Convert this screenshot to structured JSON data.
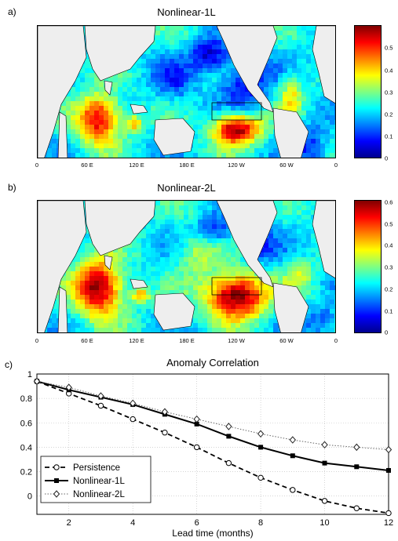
{
  "colors": {
    "land": "#eeeeee",
    "colormap": [
      "#00008f",
      "#0000ff",
      "#0080ff",
      "#00ffff",
      "#80ff80",
      "#ffff00",
      "#ff8000",
      "#ff0000",
      "#800000"
    ],
    "box_stroke": "#000000"
  },
  "panel_a": {
    "letter": "a)",
    "title": "Nonlinear-1L",
    "lon_ticks": [
      "0",
      "60 E",
      "120 E",
      "180 E",
      "120 W",
      "60 W",
      "0"
    ],
    "colorbar_ticks": [
      "0.5",
      "0.4",
      "0.3",
      "0.2",
      "0.1",
      "0"
    ]
  },
  "panel_b": {
    "letter": "b)",
    "title": "Nonlinear-2L",
    "lon_ticks": [
      "0",
      "60 E",
      "120 E",
      "180 E",
      "120 W",
      "60 W",
      "0"
    ],
    "colorbar_ticks": [
      "0.6",
      "0.5",
      "0.4",
      "0.3",
      "0.2",
      "0.1",
      "0"
    ]
  },
  "chart_data": {
    "type": "line",
    "letter": "c)",
    "title": "Anomaly Correlation",
    "xlabel": "Lead time (months)",
    "ylabel": "",
    "x": [
      1,
      2,
      3,
      4,
      5,
      6,
      7,
      8,
      9,
      10,
      11,
      12
    ],
    "xlim": [
      1,
      12
    ],
    "ylim": [
      -0.15,
      1
    ],
    "xticks": [
      2,
      4,
      6,
      8,
      10,
      12
    ],
    "yticks": [
      0,
      0.2,
      0.4,
      0.6,
      0.8,
      1
    ],
    "grid": true,
    "legend_position": "bottom-left",
    "series": [
      {
        "name": "Persistence",
        "style": "dashed",
        "marker": "circle",
        "values": [
          0.94,
          0.84,
          0.74,
          0.63,
          0.52,
          0.4,
          0.27,
          0.15,
          0.05,
          -0.04,
          -0.1,
          -0.14
        ]
      },
      {
        "name": "Nonlinear-1L",
        "style": "solid",
        "marker": "square",
        "values": [
          0.94,
          0.87,
          0.81,
          0.75,
          0.67,
          0.59,
          0.49,
          0.4,
          0.33,
          0.27,
          0.24,
          0.21
        ]
      },
      {
        "name": "Nonlinear-2L",
        "style": "dotted",
        "marker": "diamond",
        "values": [
          0.94,
          0.89,
          0.82,
          0.76,
          0.69,
          0.63,
          0.57,
          0.51,
          0.46,
          0.42,
          0.4,
          0.38
        ]
      }
    ]
  }
}
